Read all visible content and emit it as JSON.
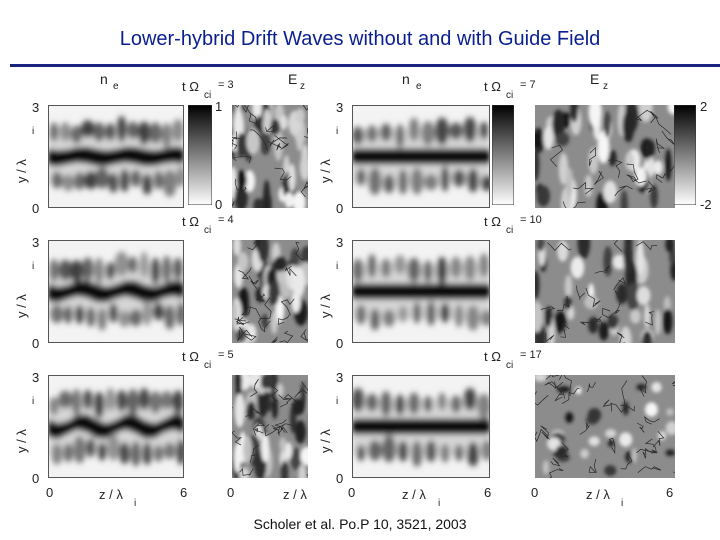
{
  "slide": {
    "title": "Lower-hybrid Drift Waves without and with Guide Field",
    "citation": "Scholer et al. Po.P 10, 3521, 2003"
  },
  "figure": {
    "col_label_density": "n",
    "col_label_density_sub": "e",
    "col_label_field": "E",
    "col_label_field_sub": "z",
    "time_prefix": "t Ω",
    "time_sub": "ci",
    "ylabel": "y / λ",
    "ylabel_sub": "i",
    "xlabel": "z / λ",
    "xlabel_sub": "i",
    "ytick_top": "3",
    "ytick_bottom": "0",
    "xtick_left": "0",
    "xtick_right": "6",
    "left_times": [
      "= 3",
      "= 4",
      "= 5"
    ],
    "right_times": [
      "= 7",
      "= 10",
      "= 17"
    ],
    "colorbar_left": {
      "top": "1",
      "bottom": "0"
    },
    "colorbar_right": {
      "top": "2",
      "bottom": "-2"
    }
  }
}
